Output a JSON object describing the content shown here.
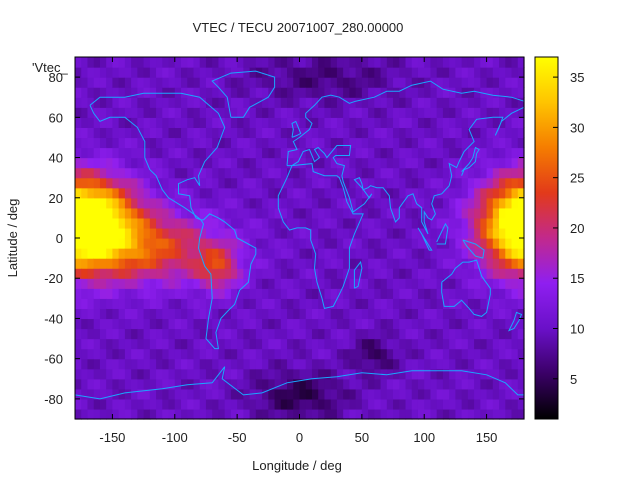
{
  "chart_data": {
    "type": "heatmap",
    "title": "VTEC / TECU 20071007_280.00000",
    "xlabel": "Longitude / deg",
    "ylabel": "Latitude / deg",
    "key_label": "'Vtec_",
    "xlim": [
      -180,
      180
    ],
    "ylim": [
      -90,
      90
    ],
    "x_ticks": [
      -150,
      -100,
      -50,
      0,
      50,
      100,
      150
    ],
    "y_ticks": [
      -80,
      -60,
      -40,
      -20,
      0,
      20,
      40,
      60,
      80
    ],
    "colorbar": {
      "range": [
        1,
        37
      ],
      "ticks": [
        5,
        10,
        15,
        20,
        25,
        30,
        35
      ],
      "palette": [
        "#000000",
        "#3a0066",
        "#6a10c8",
        "#8f1ff0",
        "#c2298c",
        "#e23a1a",
        "#f57d00",
        "#ffc400",
        "#ffff00"
      ]
    },
    "grid_step_deg": 5,
    "coastline_color": "#1aa7ff",
    "features": [
      {
        "name": "equatorial-anomaly-pacific",
        "lon": -170,
        "lat": 10,
        "sigma_lon": 28,
        "sigma_lat": 14,
        "value": 33
      },
      {
        "name": "equatorial-anomaly-west",
        "lon": -120,
        "lat": -5,
        "sigma_lon": 40,
        "sigma_lat": 12,
        "value": 20
      },
      {
        "name": "equatorial-anomaly-east",
        "lon": 180,
        "lat": 5,
        "sigma_lon": 25,
        "sigma_lat": 16,
        "value": 22
      },
      {
        "name": "south-america-trough",
        "lon": -65,
        "lat": -15,
        "sigma_lon": 12,
        "sigma_lat": 8,
        "value": 15
      },
      {
        "name": "antarctic-minimum",
        "lon": 0,
        "lat": -78,
        "sigma_lon": 25,
        "sigma_lat": 8,
        "value": -8
      },
      {
        "name": "southern-minimum",
        "lon": 60,
        "lat": -58,
        "sigma_lon": 12,
        "sigma_lat": 6,
        "value": -7
      },
      {
        "name": "arctic-minimum",
        "lon": 20,
        "lat": 80,
        "sigma_lon": 40,
        "sigma_lat": 8,
        "value": -5
      }
    ],
    "background_value": 10
  }
}
